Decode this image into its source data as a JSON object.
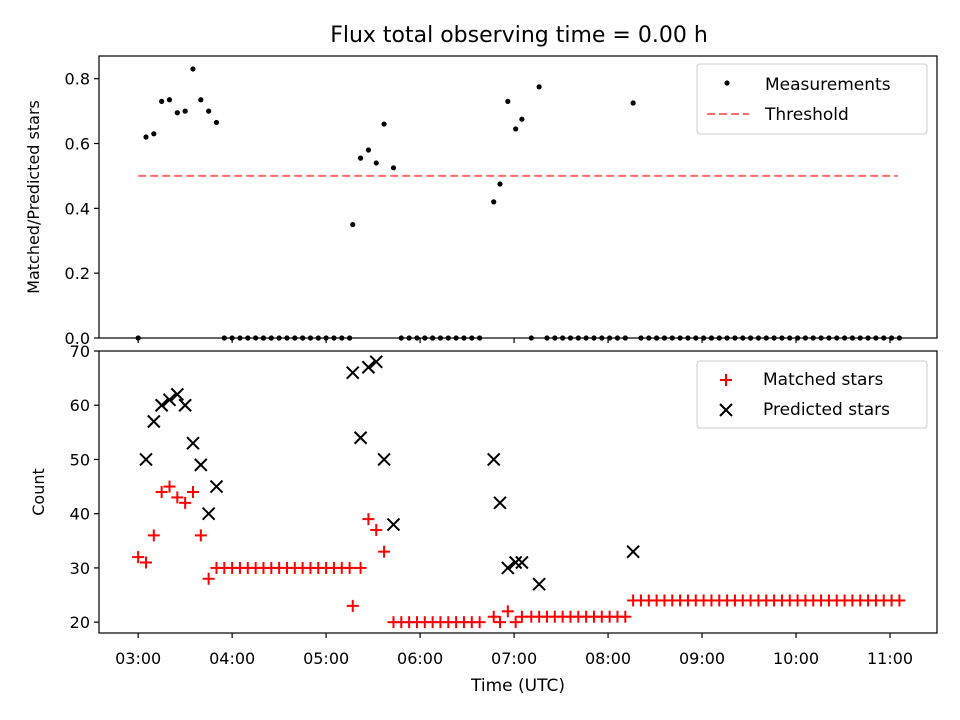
{
  "colors": {
    "measurement": "#000000",
    "threshold": "#ff6e6e",
    "matched": "#ff0000",
    "predicted": "#000000"
  },
  "chart_data": [
    {
      "type": "scatter",
      "title": "Flux total observing time = 0.00 h",
      "xlabel": "",
      "ylabel": "Matched/Predicted stars",
      "xlim": [
        "02:35",
        "11:30"
      ],
      "ylim": [
        0,
        0.87
      ],
      "yticks": [
        0.0,
        0.2,
        0.4,
        0.6,
        0.8
      ],
      "ytick_labels": [
        "0.0",
        "0.2",
        "0.4",
        "0.6",
        "0.8"
      ],
      "legend_position": "top-right",
      "grid": false,
      "series": [
        {
          "name": "Measurements",
          "marker": "dot",
          "points": [
            [
              "03:00",
              0.0
            ],
            [
              "03:05",
              0.62
            ],
            [
              "03:10",
              0.63
            ],
            [
              "03:15",
              0.73
            ],
            [
              "03:20",
              0.735
            ],
            [
              "03:25",
              0.695
            ],
            [
              "03:30",
              0.7
            ],
            [
              "03:35",
              0.83
            ],
            [
              "03:40",
              0.735
            ],
            [
              "03:45",
              0.7
            ],
            [
              "03:50",
              0.665
            ],
            [
              "03:55",
              0.0
            ],
            [
              "04:00",
              0.0
            ],
            [
              "04:05",
              0.0
            ],
            [
              "04:10",
              0.0
            ],
            [
              "04:15",
              0.0
            ],
            [
              "04:20",
              0.0
            ],
            [
              "04:25",
              0.0
            ],
            [
              "04:30",
              0.0
            ],
            [
              "04:35",
              0.0
            ],
            [
              "04:40",
              0.0
            ],
            [
              "04:45",
              0.0
            ],
            [
              "04:50",
              0.0
            ],
            [
              "04:55",
              0.0
            ],
            [
              "05:00",
              0.0
            ],
            [
              "05:05",
              0.0
            ],
            [
              "05:10",
              0.0
            ],
            [
              "05:15",
              0.0
            ],
            [
              "05:17",
              0.35
            ],
            [
              "05:22",
              0.555
            ],
            [
              "05:27",
              0.58
            ],
            [
              "05:32",
              0.54
            ],
            [
              "05:37",
              0.66
            ],
            [
              "05:43",
              0.525
            ],
            [
              "05:48",
              0.0
            ],
            [
              "05:53",
              0.0
            ],
            [
              "05:58",
              0.0
            ],
            [
              "06:03",
              0.0
            ],
            [
              "06:08",
              0.0
            ],
            [
              "06:13",
              0.0
            ],
            [
              "06:18",
              0.0
            ],
            [
              "06:23",
              0.0
            ],
            [
              "06:28",
              0.0
            ],
            [
              "06:33",
              0.0
            ],
            [
              "06:38",
              0.0
            ],
            [
              "06:47",
              0.42
            ],
            [
              "06:51",
              0.475
            ],
            [
              "06:56",
              0.73
            ],
            [
              "07:01",
              0.645
            ],
            [
              "07:05",
              0.675
            ],
            [
              "07:11",
              0.0
            ],
            [
              "07:16",
              0.775
            ],
            [
              "07:21",
              0.0
            ],
            [
              "07:26",
              0.0
            ],
            [
              "07:31",
              0.0
            ],
            [
              "07:36",
              0.0
            ],
            [
              "07:41",
              0.0
            ],
            [
              "07:46",
              0.0
            ],
            [
              "07:51",
              0.0
            ],
            [
              "07:56",
              0.0
            ],
            [
              "08:01",
              0.0
            ],
            [
              "08:06",
              0.0
            ],
            [
              "08:11",
              0.0
            ],
            [
              "08:16",
              0.725
            ],
            [
              "08:21",
              0.0
            ],
            [
              "08:26",
              0.0
            ],
            [
              "08:31",
              0.0
            ],
            [
              "08:36",
              0.0
            ],
            [
              "08:41",
              0.0
            ],
            [
              "08:46",
              0.0
            ],
            [
              "08:51",
              0.0
            ],
            [
              "08:56",
              0.0
            ],
            [
              "09:01",
              0.0
            ],
            [
              "09:06",
              0.0
            ],
            [
              "09:11",
              0.0
            ],
            [
              "09:16",
              0.0
            ],
            [
              "09:21",
              0.0
            ],
            [
              "09:26",
              0.0
            ],
            [
              "09:31",
              0.0
            ],
            [
              "09:36",
              0.0
            ],
            [
              "09:41",
              0.0
            ],
            [
              "09:46",
              0.0
            ],
            [
              "09:51",
              0.0
            ],
            [
              "09:56",
              0.0
            ],
            [
              "10:01",
              0.0
            ],
            [
              "10:06",
              0.0
            ],
            [
              "10:11",
              0.0
            ],
            [
              "10:16",
              0.0
            ],
            [
              "10:21",
              0.0
            ],
            [
              "10:26",
              0.0
            ],
            [
              "10:31",
              0.0
            ],
            [
              "10:36",
              0.0
            ],
            [
              "10:41",
              0.0
            ],
            [
              "10:46",
              0.0
            ],
            [
              "10:51",
              0.0
            ],
            [
              "10:56",
              0.0
            ],
            [
              "11:01",
              0.0
            ],
            [
              "11:06",
              0.0
            ]
          ]
        },
        {
          "name": "Threshold",
          "type": "line",
          "style": "dashed",
          "points": [
            [
              "03:00",
              0.5
            ],
            [
              "11:05",
              0.5
            ]
          ]
        }
      ]
    },
    {
      "type": "scatter",
      "title": "",
      "xlabel": "Time (UTC)",
      "ylabel": "Count",
      "xlim": [
        "02:35",
        "11:30"
      ],
      "ylim": [
        18,
        70
      ],
      "yticks": [
        20,
        30,
        40,
        50,
        60,
        70
      ],
      "ytick_labels": [
        "20",
        "30",
        "40",
        "50",
        "60",
        "70"
      ],
      "xticks": [
        "03:00",
        "04:00",
        "05:00",
        "06:00",
        "07:00",
        "08:00",
        "09:00",
        "10:00",
        "11:00"
      ],
      "legend_position": "top-right",
      "grid": false,
      "series": [
        {
          "name": "Matched stars",
          "marker": "plus",
          "points": [
            [
              "03:00",
              32
            ],
            [
              "03:05",
              31
            ],
            [
              "03:10",
              36
            ],
            [
              "03:15",
              44
            ],
            [
              "03:20",
              45
            ],
            [
              "03:25",
              43
            ],
            [
              "03:30",
              42
            ],
            [
              "03:35",
              44
            ],
            [
              "03:40",
              36
            ],
            [
              "03:45",
              28
            ],
            [
              "03:50",
              30
            ],
            [
              "03:55",
              30
            ],
            [
              "04:00",
              30
            ],
            [
              "04:05",
              30
            ],
            [
              "04:10",
              30
            ],
            [
              "04:15",
              30
            ],
            [
              "04:20",
              30
            ],
            [
              "04:25",
              30
            ],
            [
              "04:30",
              30
            ],
            [
              "04:35",
              30
            ],
            [
              "04:40",
              30
            ],
            [
              "04:45",
              30
            ],
            [
              "04:50",
              30
            ],
            [
              "04:55",
              30
            ],
            [
              "05:00",
              30
            ],
            [
              "05:05",
              30
            ],
            [
              "05:10",
              30
            ],
            [
              "05:15",
              30
            ],
            [
              "05:17",
              23
            ],
            [
              "05:22",
              30
            ],
            [
              "05:27",
              39
            ],
            [
              "05:32",
              37
            ],
            [
              "05:37",
              33
            ],
            [
              "05:43",
              20
            ],
            [
              "05:48",
              20
            ],
            [
              "05:53",
              20
            ],
            [
              "05:58",
              20
            ],
            [
              "06:03",
              20
            ],
            [
              "06:08",
              20
            ],
            [
              "06:13",
              20
            ],
            [
              "06:18",
              20
            ],
            [
              "06:23",
              20
            ],
            [
              "06:28",
              20
            ],
            [
              "06:33",
              20
            ],
            [
              "06:38",
              20
            ],
            [
              "06:47",
              21
            ],
            [
              "06:51",
              20
            ],
            [
              "06:56",
              22
            ],
            [
              "07:01",
              20
            ],
            [
              "07:05",
              21
            ],
            [
              "07:11",
              21
            ],
            [
              "07:16",
              21
            ],
            [
              "07:21",
              21
            ],
            [
              "07:26",
              21
            ],
            [
              "07:31",
              21
            ],
            [
              "07:36",
              21
            ],
            [
              "07:41",
              21
            ],
            [
              "07:46",
              21
            ],
            [
              "07:51",
              21
            ],
            [
              "07:56",
              21
            ],
            [
              "08:01",
              21
            ],
            [
              "08:06",
              21
            ],
            [
              "08:11",
              21
            ],
            [
              "08:16",
              24
            ],
            [
              "08:21",
              24
            ],
            [
              "08:26",
              24
            ],
            [
              "08:31",
              24
            ],
            [
              "08:36",
              24
            ],
            [
              "08:41",
              24
            ],
            [
              "08:46",
              24
            ],
            [
              "08:51",
              24
            ],
            [
              "08:56",
              24
            ],
            [
              "09:01",
              24
            ],
            [
              "09:06",
              24
            ],
            [
              "09:11",
              24
            ],
            [
              "09:16",
              24
            ],
            [
              "09:21",
              24
            ],
            [
              "09:26",
              24
            ],
            [
              "09:31",
              24
            ],
            [
              "09:36",
              24
            ],
            [
              "09:41",
              24
            ],
            [
              "09:46",
              24
            ],
            [
              "09:51",
              24
            ],
            [
              "09:56",
              24
            ],
            [
              "10:01",
              24
            ],
            [
              "10:06",
              24
            ],
            [
              "10:11",
              24
            ],
            [
              "10:16",
              24
            ],
            [
              "10:21",
              24
            ],
            [
              "10:26",
              24
            ],
            [
              "10:31",
              24
            ],
            [
              "10:36",
              24
            ],
            [
              "10:41",
              24
            ],
            [
              "10:46",
              24
            ],
            [
              "10:51",
              24
            ],
            [
              "10:56",
              24
            ],
            [
              "11:01",
              24
            ],
            [
              "11:06",
              24
            ]
          ]
        },
        {
          "name": "Predicted stars",
          "marker": "x",
          "points": [
            [
              "03:05",
              50
            ],
            [
              "03:10",
              57
            ],
            [
              "03:15",
              60
            ],
            [
              "03:20",
              61
            ],
            [
              "03:25",
              62
            ],
            [
              "03:30",
              60
            ],
            [
              "03:35",
              53
            ],
            [
              "03:40",
              49
            ],
            [
              "03:45",
              40
            ],
            [
              "03:50",
              45
            ],
            [
              "05:17",
              66
            ],
            [
              "05:22",
              54
            ],
            [
              "05:27",
              67
            ],
            [
              "05:32",
              68
            ],
            [
              "05:37",
              50
            ],
            [
              "05:43",
              38
            ],
            [
              "06:47",
              50
            ],
            [
              "06:51",
              42
            ],
            [
              "06:56",
              30
            ],
            [
              "07:01",
              31
            ],
            [
              "07:05",
              31
            ],
            [
              "07:16",
              27
            ],
            [
              "08:16",
              33
            ]
          ]
        }
      ]
    }
  ]
}
